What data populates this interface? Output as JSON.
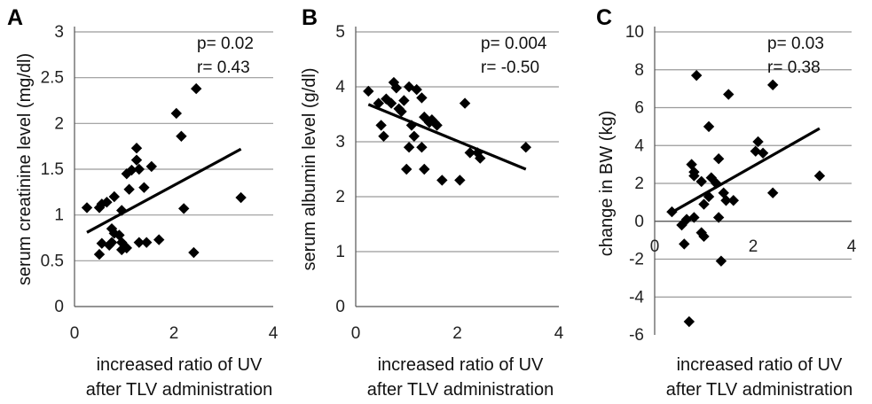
{
  "chart_data": [
    {
      "type": "scatter",
      "panel": "A",
      "xlabel_lines": [
        "increased ratio of UV",
        "after TLV administration"
      ],
      "ylabel": "serum creatinine level (mg/dl)",
      "xlim": [
        0,
        4
      ],
      "ylim": [
        0,
        3
      ],
      "xticks": [
        "0",
        "2",
        "4"
      ],
      "yticks": [
        "0",
        "0.5",
        "1",
        "1.5",
        "2",
        "2.5",
        "3"
      ],
      "stats": [
        "p= 0.02",
        "r= 0.43"
      ],
      "grid": true,
      "trendline": {
        "x": [
          0.25,
          3.35
        ],
        "y": [
          0.81,
          1.72
        ]
      },
      "points": [
        {
          "x": 0.25,
          "y": 1.08
        },
        {
          "x": 0.5,
          "y": 1.08
        },
        {
          "x": 0.55,
          "y": 1.12
        },
        {
          "x": 0.5,
          "y": 0.57
        },
        {
          "x": 0.55,
          "y": 0.69
        },
        {
          "x": 0.65,
          "y": 1.14
        },
        {
          "x": 0.7,
          "y": 0.67
        },
        {
          "x": 0.75,
          "y": 0.7
        },
        {
          "x": 0.8,
          "y": 1.2
        },
        {
          "x": 0.75,
          "y": 0.85
        },
        {
          "x": 0.8,
          "y": 0.8
        },
        {
          "x": 0.9,
          "y": 0.78
        },
        {
          "x": 0.95,
          "y": 1.05
        },
        {
          "x": 0.95,
          "y": 0.7
        },
        {
          "x": 0.95,
          "y": 0.62
        },
        {
          "x": 1.05,
          "y": 0.64
        },
        {
          "x": 1.05,
          "y": 1.45
        },
        {
          "x": 1.1,
          "y": 1.28
        },
        {
          "x": 1.15,
          "y": 1.49
        },
        {
          "x": 1.25,
          "y": 1.73
        },
        {
          "x": 1.25,
          "y": 1.6
        },
        {
          "x": 1.3,
          "y": 1.5
        },
        {
          "x": 1.3,
          "y": 0.7
        },
        {
          "x": 1.4,
          "y": 1.3
        },
        {
          "x": 1.45,
          "y": 0.7
        },
        {
          "x": 1.55,
          "y": 1.53
        },
        {
          "x": 1.7,
          "y": 0.73
        },
        {
          "x": 2.05,
          "y": 2.11
        },
        {
          "x": 2.15,
          "y": 1.86
        },
        {
          "x": 2.2,
          "y": 1.07
        },
        {
          "x": 2.45,
          "y": 2.38
        },
        {
          "x": 2.4,
          "y": 0.59
        },
        {
          "x": 3.35,
          "y": 1.19
        }
      ]
    },
    {
      "type": "scatter",
      "panel": "B",
      "xlabel_lines": [
        "increased ratio of UV",
        "after TLV administration"
      ],
      "ylabel": "serum albumin level (g/dl)",
      "xlim": [
        0,
        4
      ],
      "ylim": [
        0,
        5
      ],
      "xticks": [
        "0",
        "2",
        "4"
      ],
      "yticks": [
        "0",
        "1",
        "2",
        "3",
        "4",
        "5"
      ],
      "stats": [
        "p= 0.004",
        "r= -0.50"
      ],
      "grid": true,
      "trendline": {
        "x": [
          0.25,
          3.35
        ],
        "y": [
          3.68,
          2.5
        ]
      },
      "points": [
        {
          "x": 0.25,
          "y": 3.92
        },
        {
          "x": 0.45,
          "y": 3.7
        },
        {
          "x": 0.5,
          "y": 3.3
        },
        {
          "x": 0.55,
          "y": 3.1
        },
        {
          "x": 0.6,
          "y": 3.78
        },
        {
          "x": 0.7,
          "y": 3.7
        },
        {
          "x": 0.75,
          "y": 4.08
        },
        {
          "x": 0.8,
          "y": 3.98
        },
        {
          "x": 0.85,
          "y": 3.6
        },
        {
          "x": 0.9,
          "y": 3.55
        },
        {
          "x": 0.95,
          "y": 3.75
        },
        {
          "x": 1.0,
          "y": 2.5
        },
        {
          "x": 1.05,
          "y": 4.0
        },
        {
          "x": 1.05,
          "y": 2.9
        },
        {
          "x": 1.1,
          "y": 3.3
        },
        {
          "x": 1.15,
          "y": 3.1
        },
        {
          "x": 1.2,
          "y": 3.95
        },
        {
          "x": 1.3,
          "y": 3.8
        },
        {
          "x": 1.35,
          "y": 3.45
        },
        {
          "x": 1.3,
          "y": 2.9
        },
        {
          "x": 1.35,
          "y": 2.5
        },
        {
          "x": 1.45,
          "y": 3.35
        },
        {
          "x": 1.5,
          "y": 3.4
        },
        {
          "x": 1.55,
          "y": 3.35
        },
        {
          "x": 1.6,
          "y": 3.3
        },
        {
          "x": 1.7,
          "y": 2.3
        },
        {
          "x": 2.05,
          "y": 2.3
        },
        {
          "x": 2.15,
          "y": 3.7
        },
        {
          "x": 2.25,
          "y": 2.8
        },
        {
          "x": 2.4,
          "y": 2.8
        },
        {
          "x": 2.45,
          "y": 2.7
        },
        {
          "x": 3.35,
          "y": 2.9
        }
      ]
    },
    {
      "type": "scatter",
      "panel": "C",
      "xlabel_lines": [
        "increased ratio of UV",
        "after TLV administration"
      ],
      "ylabel": "change in BW (kg)",
      "xlim": [
        0,
        4
      ],
      "ylim": [
        -6,
        10
      ],
      "xticks": [
        "0",
        "2",
        "4"
      ],
      "yticks": [
        "-6",
        "-4",
        "-2",
        "0",
        "2",
        "4",
        "6",
        "8",
        "10"
      ],
      "stats": [
        "p= 0.03",
        "r= 0.38"
      ],
      "grid": true,
      "trendline": {
        "x": [
          0.3,
          3.35
        ],
        "y": [
          0.4,
          4.9
        ]
      },
      "points": [
        {
          "x": 0.35,
          "y": 0.5
        },
        {
          "x": 0.55,
          "y": -0.2
        },
        {
          "x": 0.6,
          "y": -1.2
        },
        {
          "x": 0.65,
          "y": 0.1
        },
        {
          "x": 0.7,
          "y": -5.3
        },
        {
          "x": 0.75,
          "y": 3.0
        },
        {
          "x": 0.8,
          "y": 2.6
        },
        {
          "x": 0.8,
          "y": 0.2
        },
        {
          "x": 0.8,
          "y": 2.4
        },
        {
          "x": 0.85,
          "y": 7.7
        },
        {
          "x": 0.95,
          "y": -0.6
        },
        {
          "x": 0.95,
          "y": 2.1
        },
        {
          "x": 1.0,
          "y": 0.9
        },
        {
          "x": 1.0,
          "y": -0.8
        },
        {
          "x": 1.1,
          "y": 5.0
        },
        {
          "x": 1.1,
          "y": 1.3
        },
        {
          "x": 1.15,
          "y": 2.3
        },
        {
          "x": 1.25,
          "y": 2.0
        },
        {
          "x": 1.3,
          "y": 3.3
        },
        {
          "x": 1.3,
          "y": 0.2
        },
        {
          "x": 1.35,
          "y": -2.1
        },
        {
          "x": 1.4,
          "y": 1.5
        },
        {
          "x": 1.45,
          "y": 1.1
        },
        {
          "x": 1.5,
          "y": 6.7
        },
        {
          "x": 1.6,
          "y": 1.1
        },
        {
          "x": 2.05,
          "y": 3.7
        },
        {
          "x": 2.1,
          "y": 4.2
        },
        {
          "x": 2.2,
          "y": 3.6
        },
        {
          "x": 2.4,
          "y": 7.2
        },
        {
          "x": 2.4,
          "y": 1.5
        },
        {
          "x": 3.35,
          "y": 2.4
        }
      ]
    }
  ]
}
